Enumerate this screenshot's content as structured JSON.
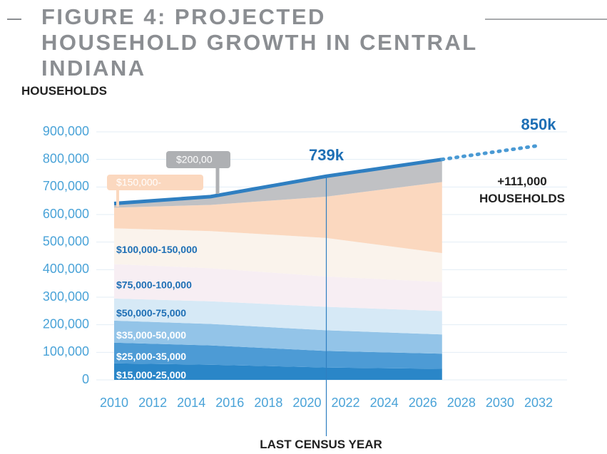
{
  "chart_data": {
    "type": "stacked_area",
    "title": "FIGURE 4: PROJECTED HOUSEHOLD GROWTH IN CENTRAL INDIANA",
    "y_label": "HOUSEHOLDS",
    "note": "+111,000 HOUSEHOLDS",
    "x": [
      2010,
      2015,
      2021,
      2027
    ],
    "xlim": [
      2010,
      2032
    ],
    "xticks": [
      2010,
      2012,
      2014,
      2016,
      2018,
      2020,
      2022,
      2024,
      2026,
      2028,
      2030,
      2032
    ],
    "ylim": [
      0,
      900000
    ],
    "yticks": [
      0,
      {
        "value": 100000,
        "label": "100,000"
      },
      {
        "value": 200000,
        "label": "200,000"
      },
      {
        "value": 300000,
        "label": "300,000"
      },
      {
        "value": 400000,
        "label": "400,000"
      },
      {
        "value": 500000,
        "label": "500,000"
      },
      {
        "value": 600000,
        "label": "600,000"
      },
      {
        "value": 700000,
        "label": "700,000"
      },
      {
        "value": 800000,
        "label": "800,000"
      },
      {
        "value": 900000,
        "label": "900,000"
      }
    ],
    "grid": true,
    "line_color": "#2f7fc1",
    "series": [
      {
        "name": "$15,000-25,000",
        "color": "#2a86c8",
        "values": [
          60000,
          55000,
          45000,
          40000
        ]
      },
      {
        "name": "$25,000-35,000",
        "color": "#4d9bd5",
        "values": [
          75000,
          70000,
          60000,
          55000
        ]
      },
      {
        "name": "$35,000-50,000",
        "color": "#93c4e8",
        "values": [
          80000,
          78000,
          75000,
          70000
        ]
      },
      {
        "name": "$50,000-75,000",
        "color": "#d6e9f6",
        "values": [
          80000,
          82000,
          85000,
          85000
        ]
      },
      {
        "name": "$75,000-100,000",
        "color": "#f7eef3",
        "values": [
          125000,
          120000,
          110000,
          105000
        ]
      },
      {
        "name": "$100,000-150,000",
        "color": "#faf3ec",
        "values": [
          130000,
          135000,
          140000,
          105000
        ]
      },
      {
        "name": "$150,000-",
        "color": "#fbd8bf",
        "values": [
          75000,
          95000,
          150000,
          258000
        ]
      },
      {
        "name": "$200,00",
        "color": "#c0c1c4",
        "values": [
          15000,
          30000,
          74000,
          82000
        ]
      }
    ],
    "projection": {
      "x": [
        2027,
        2032
      ],
      "values": [
        800000,
        850000
      ]
    },
    "marker": {
      "x": 2021,
      "label": "LAST CENSUS YEAR"
    },
    "annotations": [
      {
        "text": "739k",
        "x": 2021,
        "y": 739000
      },
      {
        "text": "850k",
        "x": 2032,
        "y": 850000
      }
    ]
  }
}
